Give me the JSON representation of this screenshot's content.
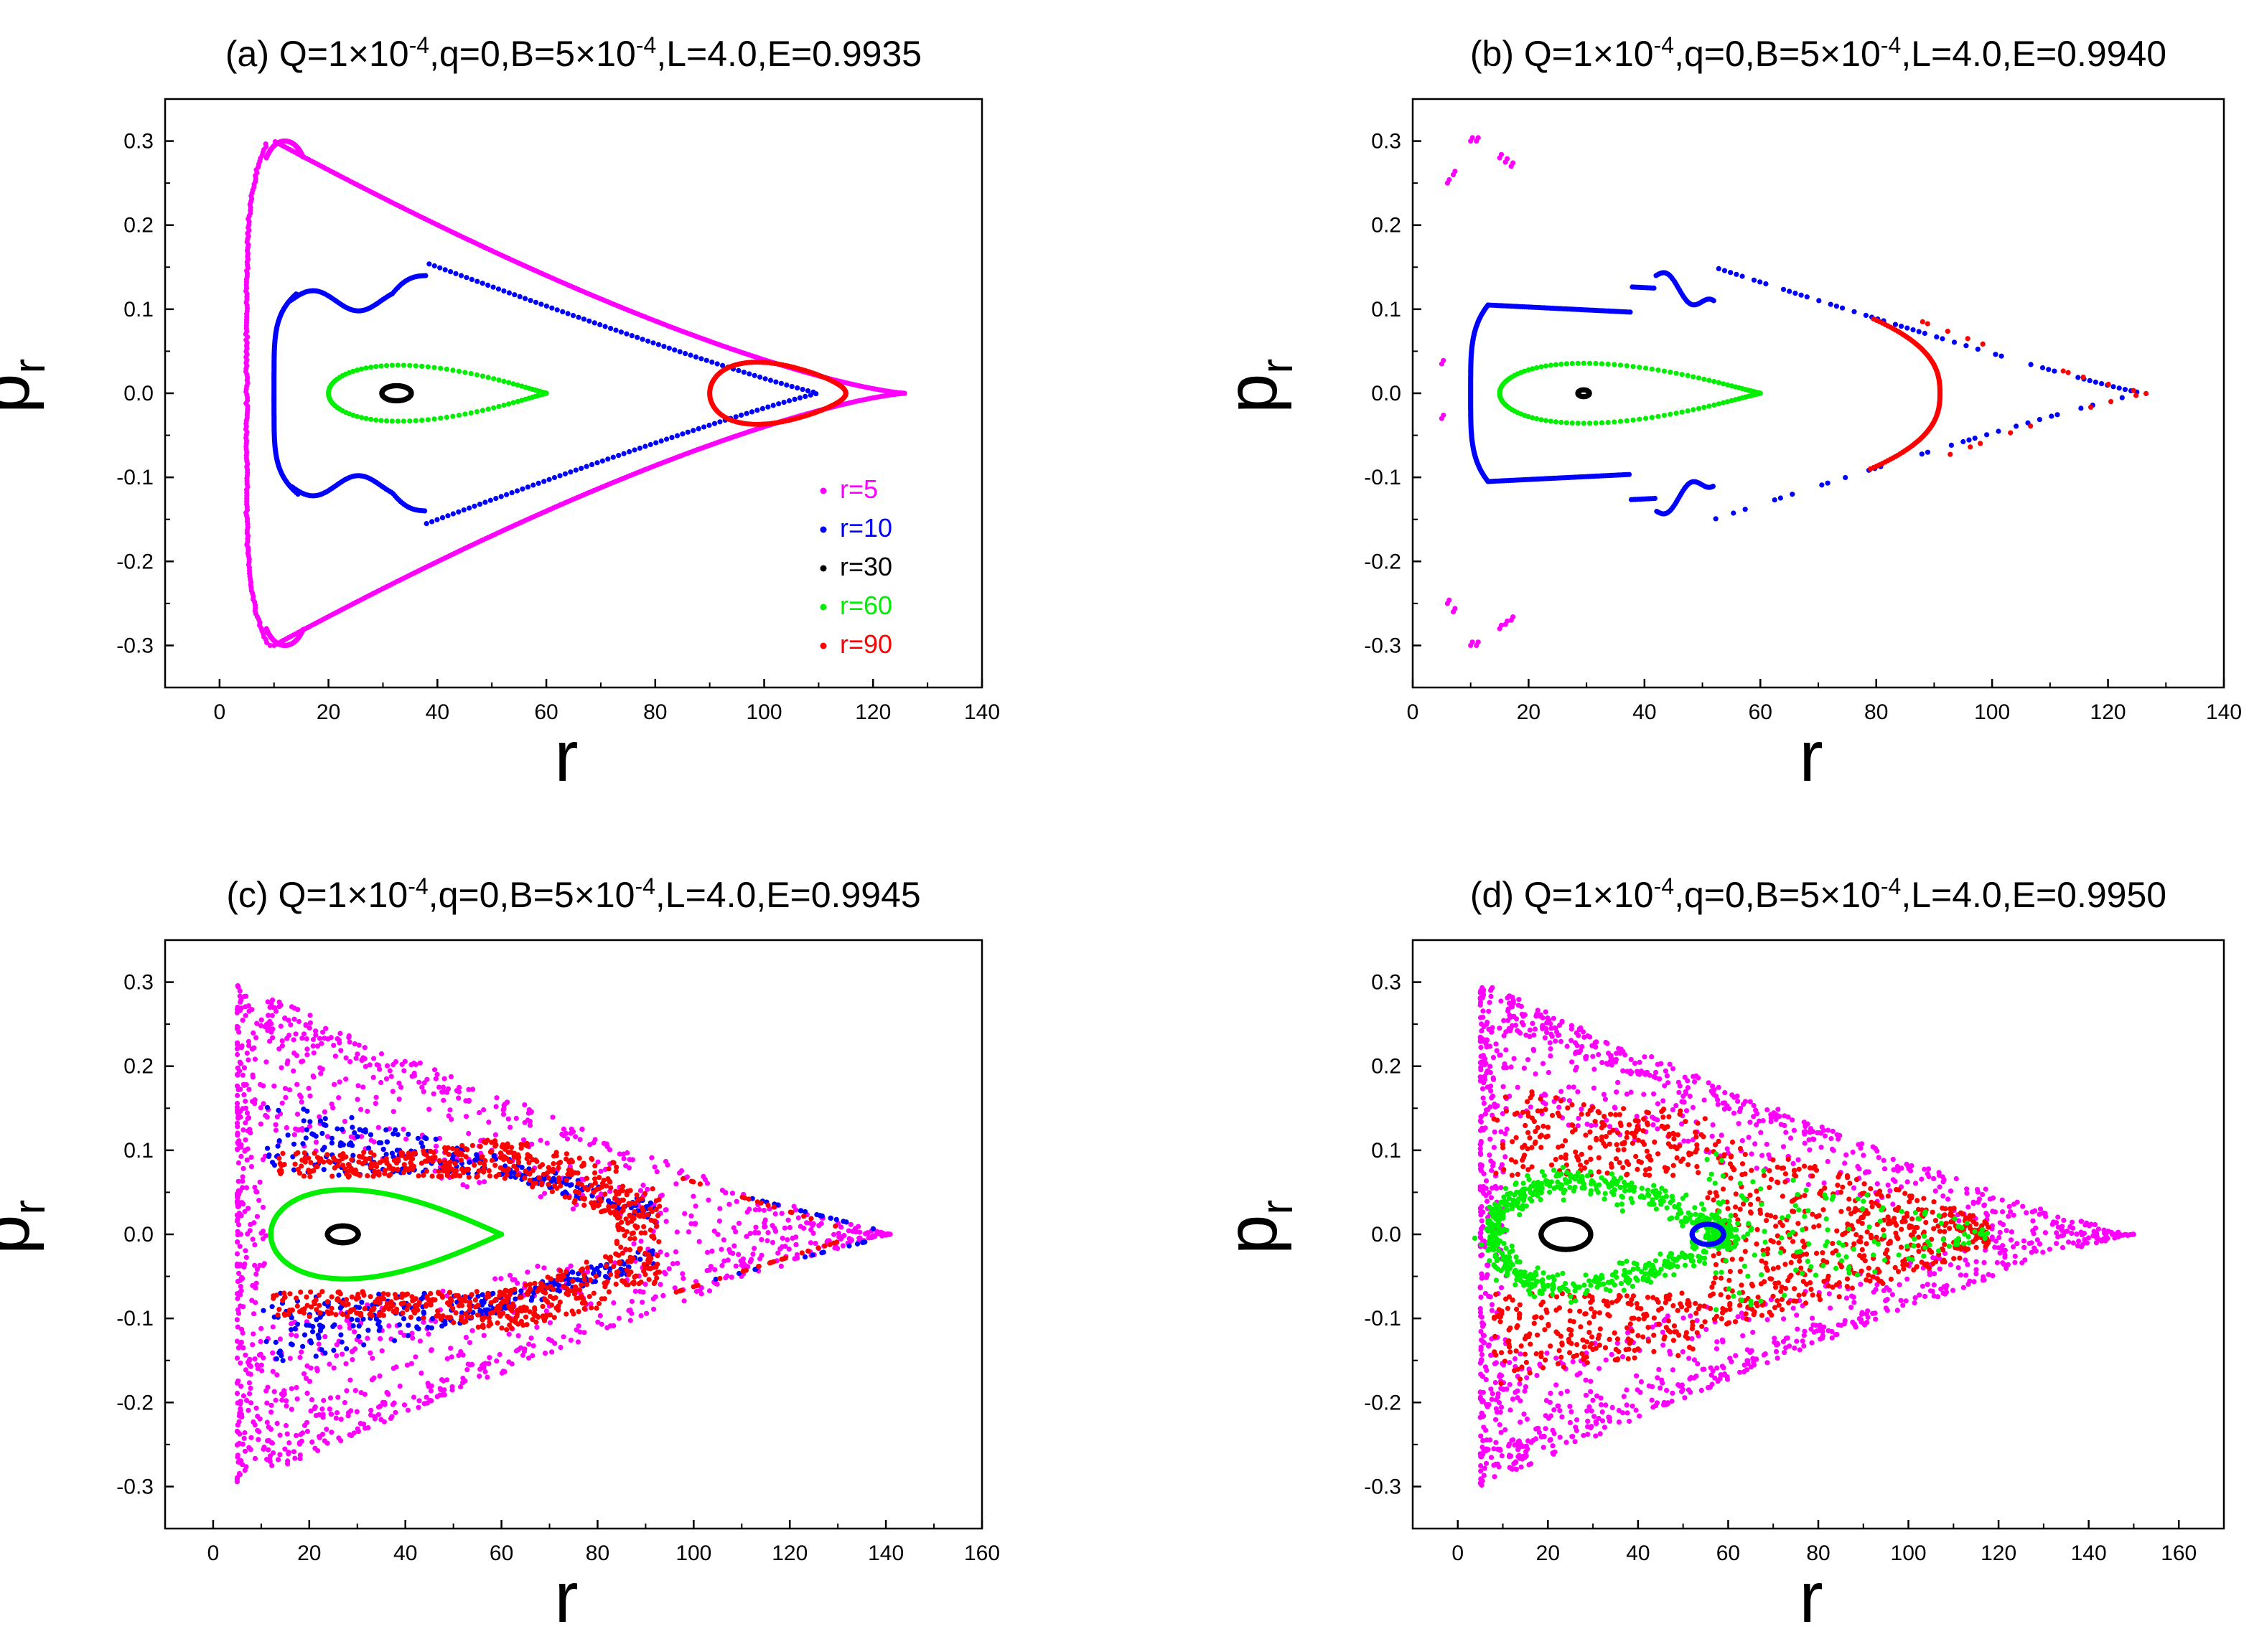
{
  "chart_data": [
    {
      "id": "a",
      "type": "scatter",
      "title": "(a) Q=1×10⁻⁴,q=0,B=5×10⁻⁴,L=4.0,E=0.9935",
      "title_parts": {
        "prefix": "(a) Q=1×10",
        "sup1": "-4",
        "mid": ",q=0,B=5×10",
        "sup2": "-4",
        "suffix": ",L=4.0,E=0.9935"
      },
      "xlabel": "r",
      "ylabel": "p",
      "ylabel_sub": "r",
      "xlim": [
        -10,
        140
      ],
      "ylim": [
        -0.35,
        0.35
      ],
      "xticks": [
        0,
        20,
        40,
        60,
        80,
        100,
        120,
        140
      ],
      "yticks": [
        -0.3,
        -0.2,
        -0.1,
        0.0,
        0.1,
        0.2,
        0.3
      ],
      "legend": [
        "r=5",
        "r=10",
        "r=30",
        "r=60",
        "r=90"
      ],
      "legend_position": "center-right",
      "series": [
        {
          "name": "r=5",
          "color": "#ff00ff",
          "kind": "orbit-triangle",
          "params": {
            "x0": 5,
            "apex": 126,
            "xpeak": 10,
            "pmax": 0.3,
            "left_half_width": 5
          },
          "n": 700
        },
        {
          "name": "r=10",
          "color": "#0000ff",
          "kind": "orbit-wavy",
          "params": {
            "x0": 10,
            "x1": 38,
            "apex": 110,
            "pmax": 0.125,
            "bump": 0.035
          },
          "n": 420
        },
        {
          "name": "r=30",
          "color": "#000000",
          "kind": "orbit-ellipse",
          "params": {
            "cx": 32.5,
            "rx": 2.7,
            "ry": 0.009
          },
          "n": 240
        },
        {
          "name": "r=60",
          "color": "#00ee00",
          "kind": "orbit-egg",
          "params": {
            "x0": 20,
            "x1": 60,
            "pmax": 0.042
          },
          "n": 110
        },
        {
          "name": "r=90",
          "color": "#ff0000",
          "kind": "orbit-egg",
          "params": {
            "x0": 90,
            "x1": 115,
            "pmax": 0.048,
            "flat": true
          },
          "n": 160
        }
      ]
    },
    {
      "id": "b",
      "type": "scatter",
      "title": "(b) Q=1×10⁻⁴,q=0,B=5×10⁻⁴,L=4.0,E=0.9940",
      "title_parts": {
        "prefix": "(b) Q=1×10",
        "sup1": "-4",
        "mid": ",q=0,B=5×10",
        "sup2": "-4",
        "suffix": ",L=4.0,E=0.9940"
      },
      "xlabel": "r",
      "ylabel": "p",
      "ylabel_sub": "r",
      "xlim": [
        0,
        140
      ],
      "ylim": [
        -0.35,
        0.35
      ],
      "xticks": [
        0,
        20,
        40,
        60,
        80,
        100,
        120,
        140
      ],
      "yticks": [
        -0.3,
        -0.2,
        -0.1,
        0.0,
        0.1,
        0.2,
        0.3
      ],
      "series": [
        {
          "name": "r=5",
          "color": "#ff00ff",
          "kind": "islands",
          "params": {
            "pts": [
              [
                6,
                0.25
              ],
              [
                7,
                0.26
              ],
              [
                10,
                0.3
              ],
              [
                11,
                0.3
              ],
              [
                15,
                0.28
              ],
              [
                16,
                0.275
              ],
              [
                17,
                0.27
              ],
              [
                5,
                0.035
              ],
              [
                5,
                -0.03
              ],
              [
                6,
                -0.25
              ],
              [
                7,
                -0.26
              ],
              [
                10,
                -0.3
              ],
              [
                11,
                -0.3
              ],
              [
                15,
                -0.28
              ],
              [
                16,
                -0.275
              ],
              [
                17,
                -0.27
              ]
            ]
          },
          "n": 60
        },
        {
          "name": "r=10",
          "color": "#0000ff",
          "kind": "orbit-wavy-b",
          "params": {
            "x0": 10,
            "x1": 40,
            "apex": 126,
            "pmax": 0.105
          },
          "n": 520
        },
        {
          "name": "r=30",
          "color": "#000000",
          "kind": "orbit-ellipse",
          "params": {
            "cx": 29.5,
            "rx": 1.0,
            "ry": 0.004
          },
          "n": 60
        },
        {
          "name": "r=60",
          "color": "#00ee00",
          "kind": "orbit-egg",
          "params": {
            "x0": 15,
            "x1": 60,
            "pmax": 0.045
          },
          "n": 130
        },
        {
          "name": "r=90",
          "color": "#ff0000",
          "kind": "orbit-crescent",
          "params": {
            "x0": 78,
            "x1": 91,
            "pmax": 0.09,
            "apex": 127
          },
          "n": 200
        }
      ]
    },
    {
      "id": "c",
      "type": "scatter",
      "title": "(c) Q=1×10⁻⁴,q=0,B=5×10⁻⁴,L=4.0,E=0.9945",
      "title_parts": {
        "prefix": "(c) Q=1×10",
        "sup1": "-4",
        "mid": ",q=0,B=5×10",
        "sup2": "-4",
        "suffix": ",L=4.0,E=0.9945"
      },
      "xlabel": "r",
      "ylabel": "p",
      "ylabel_sub": "r",
      "xlim": [
        -10,
        160
      ],
      "ylim": [
        -0.35,
        0.35
      ],
      "xticks": [
        0,
        20,
        40,
        60,
        80,
        100,
        120,
        140,
        160
      ],
      "yticks": [
        -0.3,
        -0.2,
        -0.1,
        0.0,
        0.1,
        0.2,
        0.3
      ],
      "series": [
        {
          "name": "r=5",
          "color": "#ff00ff",
          "kind": "chaos-triangle",
          "params": {
            "x0": 5,
            "apex": 141,
            "pmax": 0.3,
            "inner_x1": 90,
            "inner_p": 0.12
          },
          "n": 1300
        },
        {
          "name": "r=10",
          "color": "#0000ff",
          "kind": "chaos-band",
          "params": {
            "x0": 10,
            "x1": 92,
            "inner_p": 0.07,
            "outer_p": 0.16,
            "apex": 140
          },
          "n": 520
        },
        {
          "name": "r=90",
          "color": "#ff0000",
          "kind": "chaos-band-red",
          "params": {
            "x0": 12,
            "x1": 93,
            "apex": 130
          },
          "n": 900
        },
        {
          "name": "r=60",
          "color": "#00ee00",
          "kind": "orbit-egg",
          "params": {
            "x0": 12,
            "x1": 60,
            "pmax": 0.067
          },
          "n": 900
        },
        {
          "name": "r=30",
          "color": "#000000",
          "kind": "orbit-ellipse",
          "params": {
            "cx": 27,
            "rx": 3.2,
            "ry": 0.01
          },
          "n": 260
        }
      ]
    },
    {
      "id": "d",
      "type": "scatter",
      "title": "(d) Q=1×10⁻⁴,q=0,B=5×10⁻⁴,L=4.0,E=0.9950",
      "title_parts": {
        "prefix": "(d) Q=1×10",
        "sup1": "-4",
        "mid": ",q=0,B=5×10",
        "sup2": "-4",
        "suffix": ",L=4.0,E=0.9950"
      },
      "xlabel": "r",
      "ylabel": "p",
      "ylabel_sub": "r",
      "xlim": [
        -10,
        170
      ],
      "ylim": [
        -0.35,
        0.35
      ],
      "xticks": [
        0,
        20,
        40,
        60,
        80,
        100,
        120,
        140,
        160
      ],
      "yticks": [
        -0.3,
        -0.2,
        -0.1,
        0.0,
        0.1,
        0.2,
        0.3
      ],
      "series": [
        {
          "name": "r=5",
          "color": "#ff00ff",
          "kind": "chaos-triangle",
          "params": {
            "x0": 5,
            "apex": 150,
            "pmax": 0.3,
            "inner_x1": 118,
            "inner_p": 0.15
          },
          "n": 1400
        },
        {
          "name": "r=90",
          "color": "#ff0000",
          "kind": "chaos-fill",
          "params": {
            "x0": 8,
            "x1": 118,
            "pmax": 0.18
          },
          "n": 1000
        },
        {
          "name": "r=60",
          "color": "#00ee00",
          "kind": "chaos-ring",
          "params": {
            "x0": 8,
            "x1": 60,
            "pmax": 0.08,
            "apex": 118
          },
          "n": 700
        },
        {
          "name": "r=10",
          "color": "#0000ff",
          "kind": "orbit-ellipse",
          "params": {
            "cx": 55.5,
            "rx": 3.5,
            "ry": 0.012
          },
          "n": 120
        },
        {
          "name": "r=30",
          "color": "#000000",
          "kind": "orbit-ellipse",
          "params": {
            "cx": 24,
            "rx": 5.5,
            "ry": 0.018
          },
          "n": 320
        }
      ]
    }
  ]
}
